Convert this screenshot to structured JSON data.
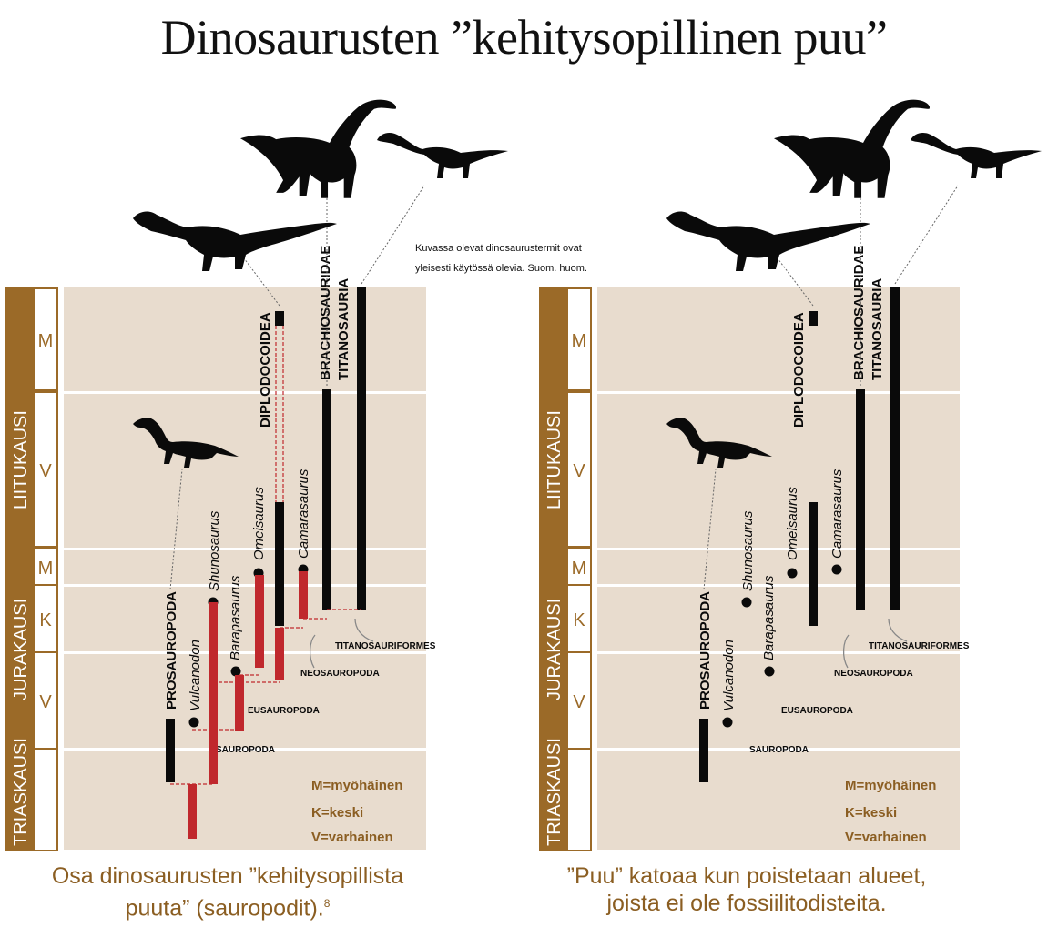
{
  "title": "Dinosaurusten ”kehitysopillinen puu”",
  "note": "Kuvassa olevat dinosaurustermit ovat yleisesti käytössä olevia. Suom. huom.",
  "periods": {
    "cretaceous": "LIITUKAUSI",
    "jurassic": "JURAKAUSI",
    "triassic": "TRIASKAUSI"
  },
  "epochs": {
    "late": "M",
    "middle": "K",
    "early": "V"
  },
  "legend": {
    "late": "M=myöhäinen",
    "middle": "K=keski",
    "early": "V=varhainen"
  },
  "clades": {
    "diplodocoidea": "DIPLODOCOIDEA",
    "brachiosauridae": "BRACHIOSAURIDAE",
    "titanosauria": "TITANOSAURIA",
    "prosauropoda": "PROSAUROPODA"
  },
  "taxa": {
    "vulcanodon": "Vulcanodon",
    "shunosaurus": "Shunosaurus",
    "barapasaurus": "Barapasaurus",
    "omeisaurus": "Omeisaurus",
    "camarasaurus": "Camarasaurus"
  },
  "nodes": {
    "sauropoda": "SAUROPODA",
    "eusauropoda": "EUSAUROPODA",
    "neosauropoda": "NEOSAUROPODA",
    "titanosauriformes": "TITANOSAURIFORMES"
  },
  "captions": {
    "left": "Osa dinosaurusten ”kehitysopillista puuta” (sauropodit).",
    "left_ref": "8",
    "right": "”Puu” katoaa kun poistetaan alueet, joista ei ole fossiilitodisteita."
  },
  "colors": {
    "brown": "#9b6a28",
    "panel": "#e8dcce",
    "red": "#c0282d",
    "black": "#0a0a0a",
    "legend_text": "#8b5e22"
  }
}
